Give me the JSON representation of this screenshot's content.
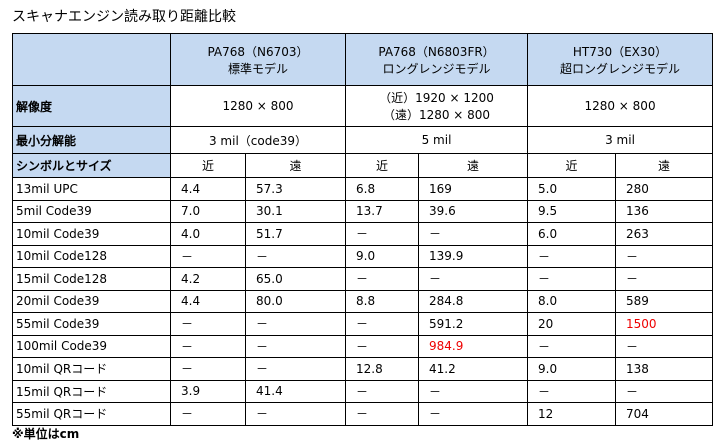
{
  "title": "スキャナエンジン読み取り距離比較",
  "table": {
    "models": [
      {
        "name": "PA768（N6703）",
        "sub": "標準モデル"
      },
      {
        "name": "PA768（N6803FR）",
        "sub": "ロングレンジモデル"
      },
      {
        "name": "HT730（EX30）",
        "sub": "超ロングレンジモデル"
      }
    ],
    "resolution": {
      "label": "解像度",
      "values": [
        [
          "1280 × 800"
        ],
        [
          "（近）1920 × 1200",
          "（遠）1280 × 800"
        ],
        [
          "1280 × 800"
        ]
      ]
    },
    "min_resolution": {
      "label": "最小分解能",
      "values": [
        "3 mil（code39）",
        "5 mil",
        "3 mil"
      ]
    },
    "symbol_header": {
      "label": "シンボルとサイズ",
      "near": "近",
      "far": "遠"
    },
    "rows": [
      {
        "label": "13mil UPC",
        "values": [
          "4.4",
          "57.3",
          "6.8",
          "169",
          "5.0",
          "280"
        ]
      },
      {
        "label": "5mil Code39",
        "values": [
          "7.0",
          "30.1",
          "13.7",
          "39.6",
          "9.5",
          "136"
        ]
      },
      {
        "label": "10mil Code39",
        "values": [
          "4.0",
          "51.7",
          "－",
          "－",
          "6.0",
          "263"
        ]
      },
      {
        "label": "10mil Code128",
        "values": [
          "－",
          "－",
          "9.0",
          "139.9",
          "－",
          "－"
        ]
      },
      {
        "label": "15mil Code128",
        "values": [
          "4.2",
          "65.0",
          "－",
          "－",
          "－",
          "－"
        ]
      },
      {
        "label": "20mil Code39",
        "values": [
          "4.4",
          "80.0",
          "8.8",
          "284.8",
          "8.0",
          "589"
        ]
      },
      {
        "label": "55mil Code39",
        "values": [
          "－",
          "－",
          "－",
          "591.2",
          "20",
          "1500"
        ]
      },
      {
        "label": "100mil Code39",
        "values": [
          "－",
          "－",
          "－",
          "984.9",
          "－",
          "－"
        ]
      },
      {
        "label": "10mil QRコード",
        "values": [
          "－",
          "－",
          "12.8",
          "41.2",
          "9.0",
          "138"
        ]
      },
      {
        "label": "15mil QRコード",
        "values": [
          "3.9",
          "41.4",
          "－",
          "－",
          "－",
          "－"
        ]
      },
      {
        "label": "55mil QRコード",
        "values": [
          "－",
          "－",
          "－",
          "－",
          "12",
          "704"
        ]
      }
    ]
  },
  "footnote": "※単位はcm"
}
